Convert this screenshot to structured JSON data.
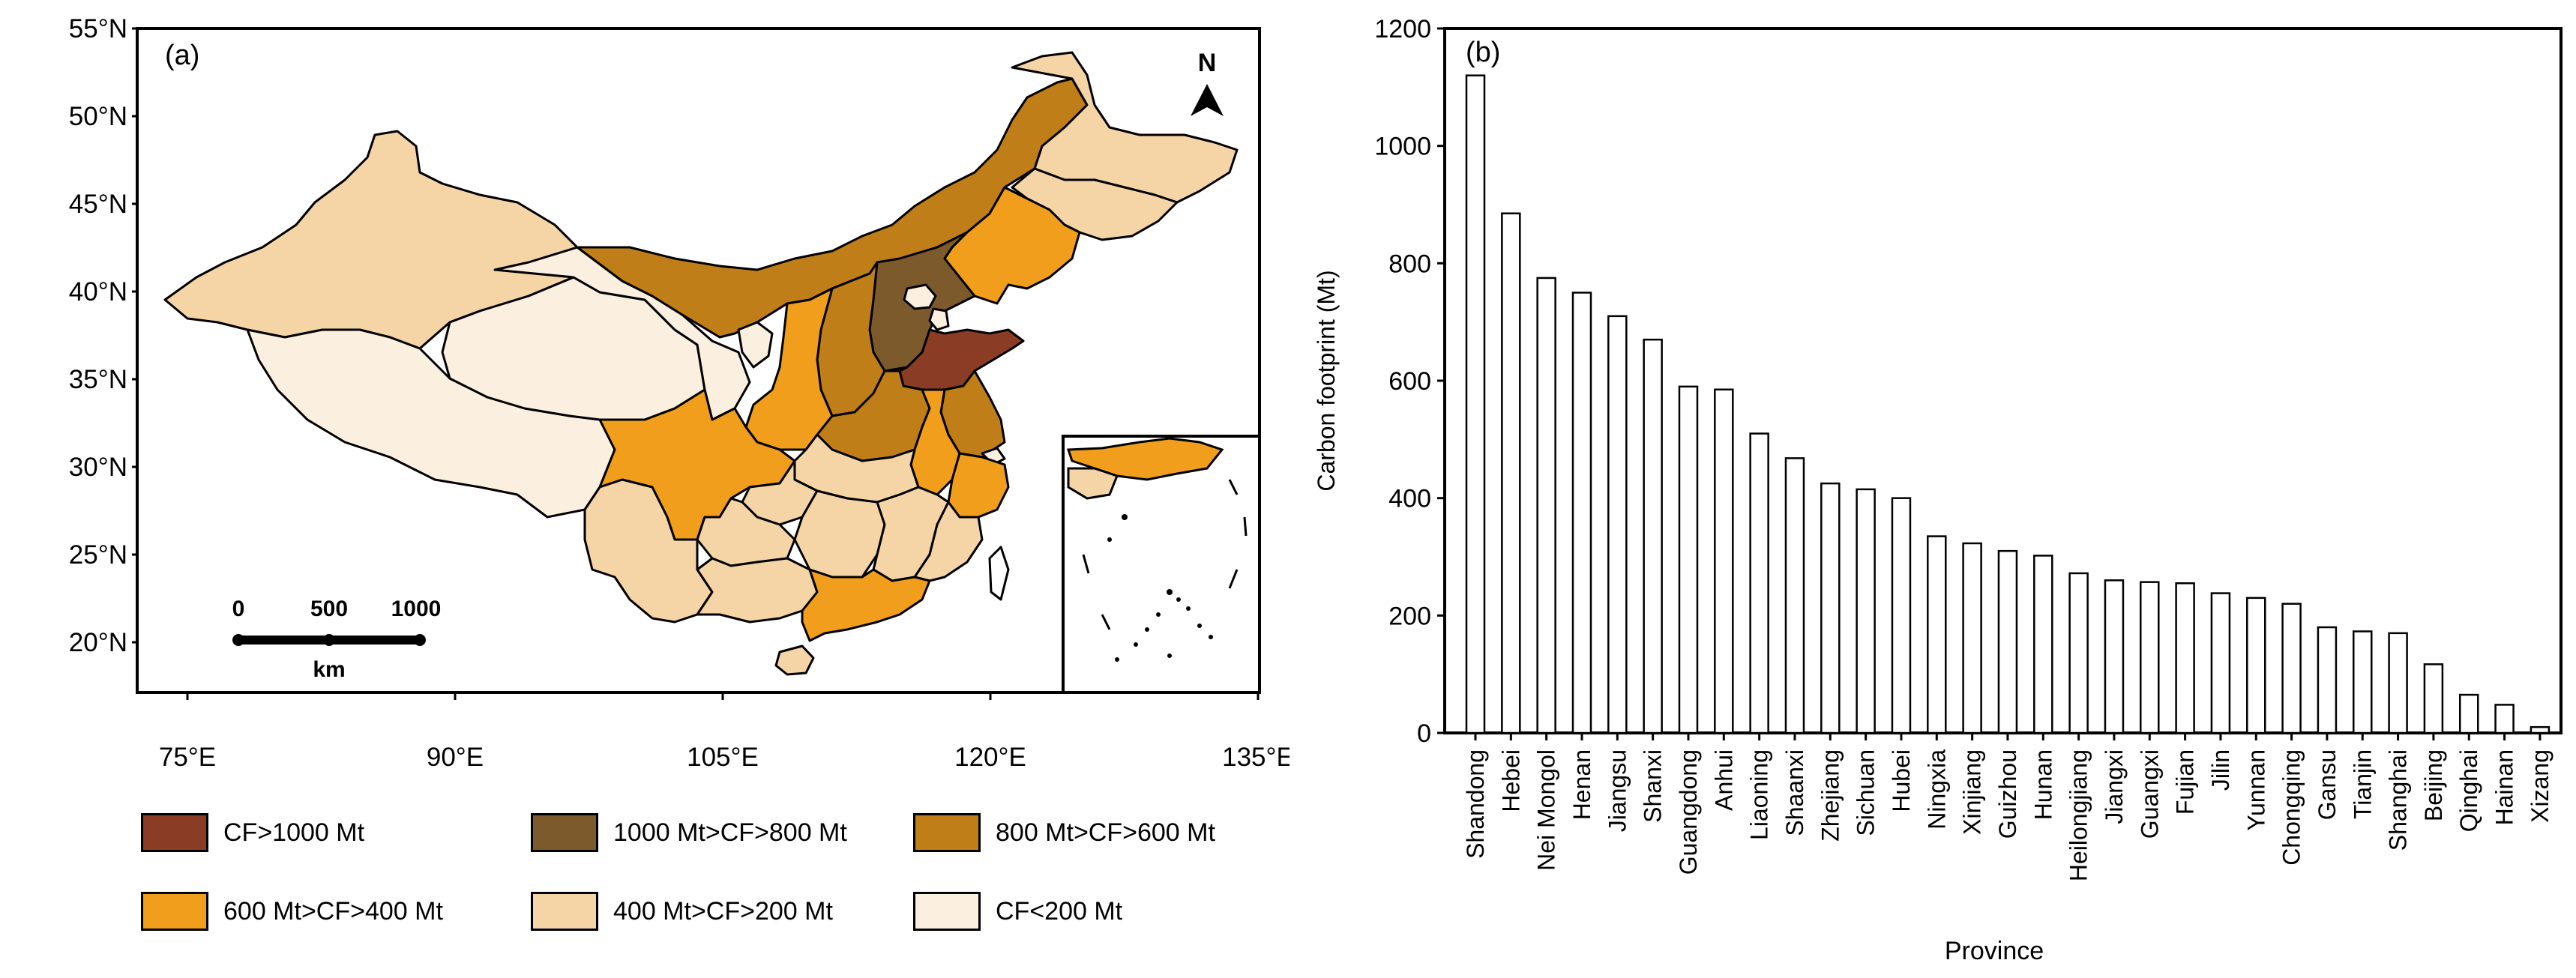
{
  "panel_a": {
    "label": "(a)",
    "north_label": "N",
    "lat_ticks": [
      "55°N",
      "50°N",
      "45°N",
      "40°N",
      "35°N",
      "30°N",
      "25°N",
      "20°N"
    ],
    "lon_ticks": [
      "75°E",
      "90°E",
      "105°E",
      "120°E",
      "135°E"
    ],
    "scalebar": {
      "labels": [
        "0",
        "500",
        "1000"
      ],
      "unit": "km"
    },
    "legend": [
      {
        "label": "CF>1000 Mt",
        "color": "#8a3d24"
      },
      {
        "label": "1000 Mt>CF>800 Mt",
        "color": "#7c5a2c"
      },
      {
        "label": "800 Mt>CF>600 Mt",
        "color": "#c07e18"
      },
      {
        "label": "600 Mt>CF>400 Mt",
        "color": "#f09e1c"
      },
      {
        "label": "400 Mt>CF>200 Mt",
        "color": "#f5d5a6"
      },
      {
        "label": "CF<200 Mt",
        "color": "#fbefe0"
      }
    ]
  },
  "chart_data": {
    "type": "bar",
    "panel_label": "(b)",
    "title": "",
    "xlabel": "Province",
    "ylabel": "Carbon footprint (Mt)",
    "ylim": [
      0,
      1200
    ],
    "yticks": [
      0,
      200,
      400,
      600,
      800,
      1000,
      1200
    ],
    "categories": [
      "Shandong",
      "Hebei",
      "Nei Mongol",
      "Henan",
      "Jiangsu",
      "Shanxi",
      "Guangdong",
      "Anhui",
      "Liaoning",
      "Shaanxi",
      "Zhejiang",
      "Sichuan",
      "Hubei",
      "Ningxia",
      "Xinjiang",
      "Guizhou",
      "Hunan",
      "Heilongjiang",
      "Jiangxi",
      "Guangxi",
      "Fujian",
      "Jilin",
      "Yunnan",
      "Chongqing",
      "Gansu",
      "Tianjin",
      "Shanghai",
      "Beijing",
      "Qinghai",
      "Hainan",
      "Xizang"
    ],
    "values": [
      1120,
      885,
      775,
      750,
      710,
      670,
      590,
      585,
      510,
      468,
      425,
      415,
      400,
      335,
      323,
      310,
      302,
      272,
      260,
      257,
      255,
      238,
      230,
      220,
      180,
      173,
      170,
      117,
      65,
      48,
      10
    ],
    "bar_fill": "#ffffff",
    "bar_stroke": "#000000"
  }
}
